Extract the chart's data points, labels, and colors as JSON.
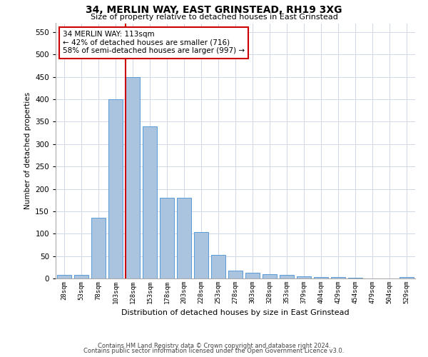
{
  "title": "34, MERLIN WAY, EAST GRINSTEAD, RH19 3XG",
  "subtitle": "Size of property relative to detached houses in East Grinstead",
  "xlabel": "Distribution of detached houses by size in East Grinstead",
  "ylabel": "Number of detached properties",
  "bin_labels": [
    "28sqm",
    "53sqm",
    "78sqm",
    "103sqm",
    "128sqm",
    "153sqm",
    "178sqm",
    "203sqm",
    "228sqm",
    "253sqm",
    "278sqm",
    "303sqm",
    "328sqm",
    "353sqm",
    "379sqm",
    "404sqm",
    "429sqm",
    "454sqm",
    "479sqm",
    "504sqm",
    "529sqm"
  ],
  "bar_heights": [
    8,
    8,
    135,
    400,
    450,
    340,
    180,
    180,
    103,
    52,
    18,
    13,
    10,
    8,
    5,
    3,
    3,
    2,
    0,
    0,
    3
  ],
  "bar_color": "#aac4e0",
  "bar_edge_color": "#5b9bd5",
  "vline_index": 3.6,
  "vline_color": "#cc0000",
  "annotation_text": "34 MERLIN WAY: 113sqm\n← 42% of detached houses are smaller (716)\n58% of semi-detached houses are larger (997) →",
  "annotation_box_color": "#ffffff",
  "annotation_box_edge_color": "#cc0000",
  "ylim": [
    0,
    570
  ],
  "yticks": [
    0,
    50,
    100,
    150,
    200,
    250,
    300,
    350,
    400,
    450,
    500,
    550
  ],
  "footer1": "Contains HM Land Registry data © Crown copyright and database right 2024.",
  "footer2": "Contains public sector information licensed under the Open Government Licence v3.0.",
  "background_color": "#ffffff",
  "grid_color": "#d0d8e8"
}
